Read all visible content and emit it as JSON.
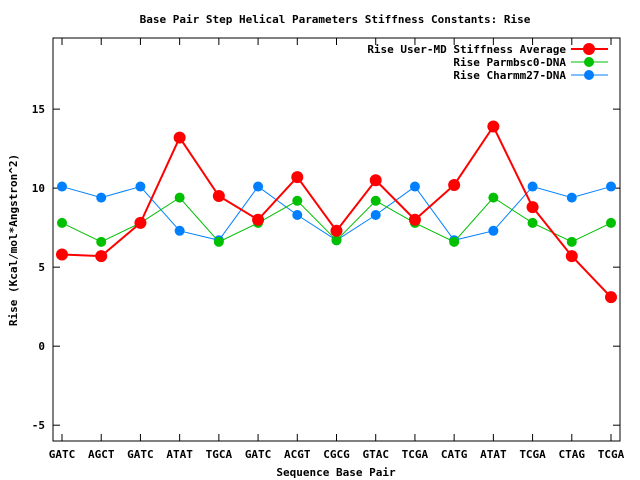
{
  "chart_data": {
    "type": "line",
    "title": "Base Pair Step Helical Parameters Stiffness Constants: Rise",
    "xlabel": "Sequence Base Pair",
    "ylabel": "Rise (Kcal/mol*Angstron^2)",
    "categories": [
      "GATC",
      "AGCT",
      "GATC",
      "ATAT",
      "TGCA",
      "GATC",
      "ACGT",
      "CGCG",
      "GTAC",
      "TCGA",
      "CATG",
      "ATAT",
      "TCGA",
      "CTAG",
      "TCGA"
    ],
    "ylim": [
      -6,
      19.5
    ],
    "yticks": [
      -5,
      0,
      5,
      10,
      15
    ],
    "grid": false,
    "legend_position": "top-right",
    "series": [
      {
        "name": "Rise User-MD Stiffness Average",
        "color": "#ff0000",
        "values": [
          5.8,
          5.7,
          7.8,
          13.2,
          9.5,
          8.0,
          10.7,
          7.3,
          10.5,
          8.0,
          10.2,
          13.9,
          8.8,
          5.7,
          3.1
        ]
      },
      {
        "name": "Rise Parmbsc0-DNA",
        "color": "#00c000",
        "values": [
          7.8,
          6.6,
          7.8,
          9.4,
          6.6,
          7.8,
          9.2,
          6.7,
          9.2,
          7.8,
          6.6,
          9.4,
          7.8,
          6.6,
          7.8
        ]
      },
      {
        "name": "Rise Charmm27-DNA",
        "color": "#0080ff",
        "values": [
          10.1,
          9.4,
          10.1,
          7.3,
          6.7,
          10.1,
          8.3,
          6.7,
          8.3,
          10.1,
          6.7,
          7.3,
          10.1,
          9.4,
          10.1
        ]
      }
    ]
  }
}
